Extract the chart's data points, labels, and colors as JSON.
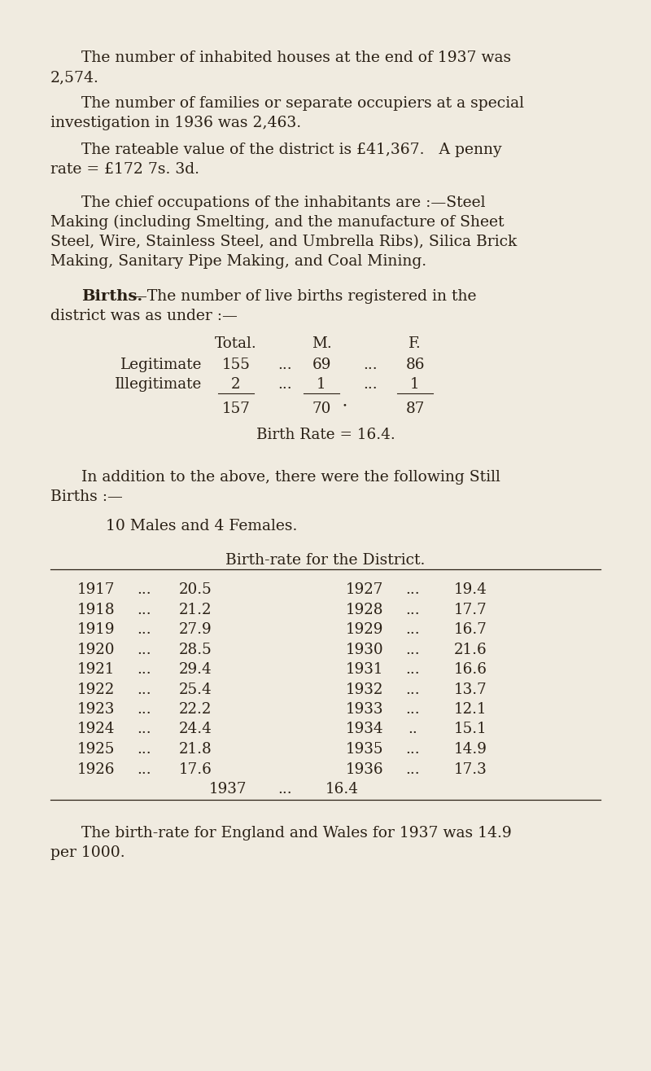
{
  "bg_color": "#f0ebe0",
  "text_color": "#2a2015",
  "fs_body": 13.5,
  "fs_table": 13.2,
  "fs_bold": 14.0,
  "fs_small": 12.5,
  "para1_l1": "The number of inhabited houses at the end of 1937 was",
  "para1_l2": "2,574.",
  "para2_l1": "The number of families or separate occupiers at a special",
  "para2_l2": "investigation in 1936 was 2,463.",
  "para3_l1": "The rateable value of the district is £41,367.   A penny",
  "para3_l2": "rate = £172 7s. 3d.",
  "para4_l1": "The chief occupations of the inhabitants are :—Steel",
  "para4_l2": "Making (including Smelting, and the manufacture of Sheet",
  "para4_l3": "Steel, Wire, Stainless Steel, and Umbrella Ribs), Silica Brick",
  "para4_l4": "Making, Sanitary Pipe Making, and Coal Mining.",
  "births_bold": "Births.",
  "births_rest": "—The number of live births registered in the",
  "births_l2": "district was as under :—",
  "tbl_header_total": "Total.",
  "tbl_header_m": "M.",
  "tbl_header_f": "F.",
  "tbl_r1_label": "Legitimate",
  "tbl_r1_total": "155",
  "tbl_r1_dots1": "...",
  "tbl_r1_m": "69",
  "tbl_r1_dots2": "...",
  "tbl_r1_f": "86",
  "tbl_r2_label": "Illegitimate",
  "tbl_r2_total": "2",
  "tbl_r2_dots1": "...",
  "tbl_r2_m": "1",
  "tbl_r2_dots2": "...",
  "tbl_r2_f": "1",
  "tbl_tot_total": "157",
  "tbl_tot_m": "70",
  "tbl_tot_dot": "•",
  "tbl_tot_f": "87",
  "birth_rate_line": "Birth Rate = 16.4.",
  "still_l1": "In addition to the above, there were the following Still",
  "still_l2": "Births :—",
  "still_detail": "10 Males and 4 Females.",
  "district_title": "Birth-rate for the District.",
  "rate_data_left": [
    [
      "1917",
      "...",
      "20.5"
    ],
    [
      "1918",
      "...",
      "21.2"
    ],
    [
      "1919",
      "...",
      "27.9"
    ],
    [
      "1920",
      "...",
      "28.5"
    ],
    [
      "1921",
      "...",
      "29.4"
    ],
    [
      "1922",
      "...",
      "25.4"
    ],
    [
      "1923",
      "...",
      "22.2"
    ],
    [
      "1924",
      "...",
      "24.4"
    ],
    [
      "1925",
      "...",
      "21.8"
    ],
    [
      "1926",
      "...",
      "17.6"
    ]
  ],
  "rate_data_right": [
    [
      "1927",
      "...",
      "19.4"
    ],
    [
      "1928",
      "...",
      "17.7"
    ],
    [
      "1929",
      "...",
      "16.7"
    ],
    [
      "1930",
      "...",
      "21.6"
    ],
    [
      "1931",
      "...",
      "16.6"
    ],
    [
      "1932",
      "...",
      "13.7"
    ],
    [
      "1933",
      "...",
      "12.1"
    ],
    [
      "1934",
      "..",
      "15.1"
    ],
    [
      "1935",
      "...",
      "14.9"
    ],
    [
      "1936",
      "...",
      "17.3"
    ]
  ],
  "rate_1937": [
    "1937",
    "...",
    "16.4"
  ],
  "footer_l1": "The birth-rate for England and Wales for 1937 was 14.9",
  "footer_l2": "per 1000."
}
